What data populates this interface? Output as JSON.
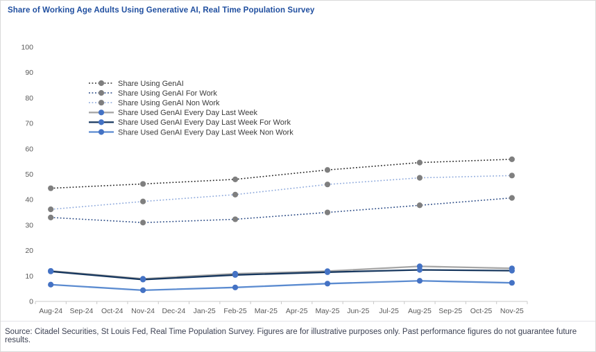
{
  "title": "Share of Working Age Adults Using Generative AI, Real Time Population Survey",
  "footer": "Source: Citadel Securities, St Louis Fed, Real Time Population Survey. Figures are for illustrative purposes only. Past performance figures do not guarantee future results.",
  "colors": {
    "title_blue": "#1f4e9f",
    "axis_line": "#c9c9c9",
    "axis_text": "#595959",
    "legend_text": "#3a3a3a",
    "footer_text": "#3a3f51",
    "gray_marker": "#7f7f7f",
    "blue_marker": "#4472c4"
  },
  "chart_data": {
    "type": "line",
    "title": "Share of Working Age Adults Using Generative AI, Real Time Population Survey",
    "xlabel": "",
    "ylabel": "",
    "ylim": [
      0,
      100
    ],
    "y_tick_step": 10,
    "grid": false,
    "legend_position": "inside-top-left",
    "x_tick_labels": [
      "Aug-24",
      "Sep-24",
      "Oct-24",
      "Nov-24",
      "Dec-24",
      "Jan-25",
      "Feb-25",
      "Mar-25",
      "Apr-25",
      "May-25",
      "Jun-25",
      "Jul-25",
      "Aug-25",
      "Sep-25",
      "Oct-25",
      "Nov-25"
    ],
    "data_month_indices": [
      0,
      3,
      6,
      9,
      12,
      15
    ],
    "data_months": [
      "Aug-24",
      "Nov-24",
      "Feb-25",
      "May-25",
      "Aug-25",
      "Nov-25"
    ],
    "series": [
      {
        "name": "Share Using GenAI",
        "style": "dotted",
        "line_color": "#262626",
        "marker_color": "#7f7f7f",
        "values": [
          44.5,
          46.2,
          48.0,
          51.7,
          54.6,
          55.9
        ]
      },
      {
        "name": "Share Using GenAI For Work",
        "style": "dotted",
        "line_color": "#2a4a85",
        "marker_color": "#7f7f7f",
        "values": [
          33.0,
          31.0,
          32.3,
          35.0,
          37.8,
          40.7
        ]
      },
      {
        "name": "Share Using GenAI Non Work",
        "style": "dotted",
        "line_color": "#8faadc",
        "marker_color": "#7f7f7f",
        "values": [
          36.2,
          39.3,
          42.0,
          46.0,
          48.6,
          49.5
        ]
      },
      {
        "name": "Share Used GenAI Every Day Last Week",
        "style": "solid",
        "line_color": "#a6a6a6",
        "marker_color": "#4472c4",
        "values": [
          12.0,
          8.9,
          10.9,
          11.9,
          13.8,
          13.0
        ]
      },
      {
        "name": "Share Used GenAI Every Day Last Week For Work",
        "style": "solid",
        "line_color": "#17375e",
        "marker_color": "#4472c4",
        "values": [
          11.8,
          8.6,
          10.4,
          11.5,
          12.4,
          12.1
        ]
      },
      {
        "name": "Share Used GenAI Every Day Last Week Non Work",
        "style": "solid",
        "line_color": "#5b8bd0",
        "marker_color": "#4472c4",
        "values": [
          6.6,
          4.4,
          5.5,
          7.0,
          8.1,
          7.3
        ]
      }
    ]
  }
}
